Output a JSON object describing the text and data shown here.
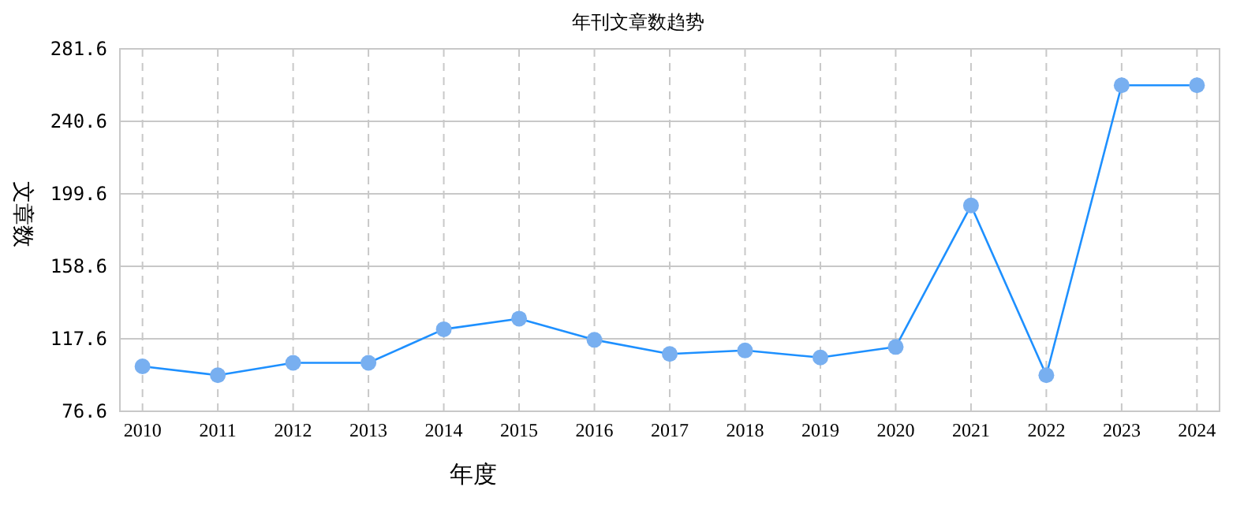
{
  "chart_data": {
    "type": "line",
    "title": "年刊文章数趋势",
    "xlabel": "年度",
    "ylabel": "文章数",
    "categories": [
      "2010",
      "2011",
      "2012",
      "2013",
      "2014",
      "2015",
      "2016",
      "2017",
      "2018",
      "2019",
      "2020",
      "2021",
      "2022",
      "2023",
      "2024"
    ],
    "series": [
      {
        "color": "#1e90ff",
        "values": [
          102,
          97,
          104,
          104,
          123,
          129,
          117,
          109,
          111,
          107,
          113,
          193,
          97,
          261,
          261
        ]
      }
    ],
    "ylim": [
      76.6,
      281.6
    ],
    "yticks": [
      76.6,
      117.6,
      158.6,
      199.6,
      240.6,
      281.6
    ],
    "grid": true,
    "marker": "circle"
  }
}
